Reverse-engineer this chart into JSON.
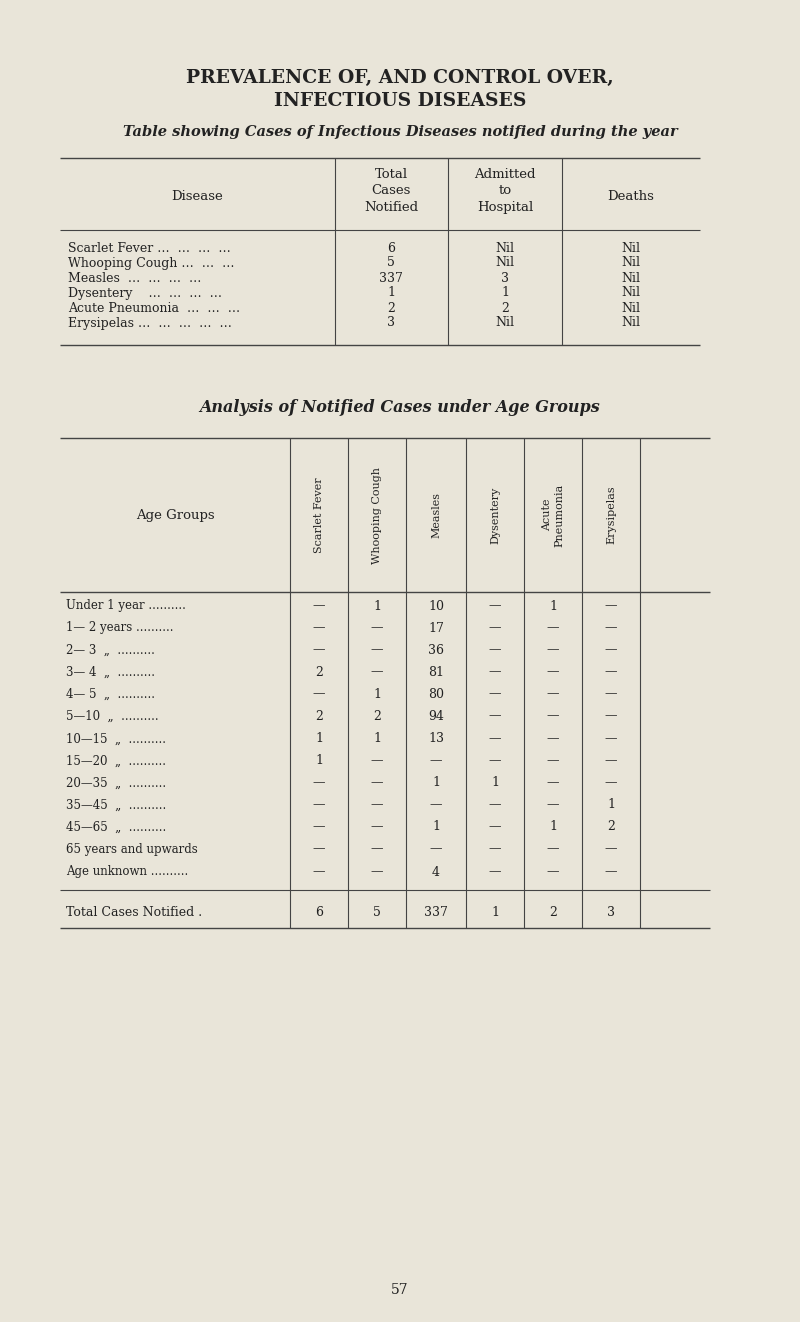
{
  "bg_color": "#e9e5d9",
  "title_line1": "PREVALENCE OF, AND CONTROL OVER,",
  "title_line2": "INFECTIOUS DISEASES",
  "subtitle": "Table showing Cases of Infectious Diseases notified during the year",
  "table1_rows": [
    [
      "Scarlet Fever …  …  …  …",
      "6",
      "Nil",
      "Nil"
    ],
    [
      "Whooping Cough …  …  …",
      "5",
      "Nil",
      "Nil"
    ],
    [
      "Measles  …  …  …  …",
      "337",
      "3",
      "Nil"
    ],
    [
      "Dysentery    …  …  …  …",
      "1",
      "1",
      "Nil"
    ],
    [
      "Acute Pneumonia  …  …  …",
      "2",
      "2",
      "Nil"
    ],
    [
      "Erysipelas …  …  …  …  …",
      "3",
      "Nil",
      "Nil"
    ]
  ],
  "table2_title": "Analysis of Notified Cases under Age Groups",
  "table2_col_headers": [
    "Scarlet Fever",
    "Whooping Cough",
    "Measles",
    "Dysentery",
    "Acute\nPneumonia",
    "Erysipelas"
  ],
  "table2_age_groups": [
    "Under 1 year ..........",
    "1— 2 years ..........",
    "2— 3  „  ..........",
    "3— 4  „  ..........",
    "4— 5  „  ..........",
    "5—10  „  ..........",
    "10—15  „  ..........",
    "15—20  „  ..........",
    "20—35  „  ..........",
    "35—45  „  ..........",
    "45—65  „  ..........",
    "65 years and upwards",
    "Age unknown .........."
  ],
  "table2_data": [
    [
      "—",
      "1",
      "10",
      "—",
      "1",
      "—"
    ],
    [
      "—",
      "—",
      "17",
      "—",
      "—",
      "—"
    ],
    [
      "—",
      "—",
      "36",
      "—",
      "—",
      "—"
    ],
    [
      "2",
      "—",
      "81",
      "—",
      "—",
      "—"
    ],
    [
      "—",
      "1",
      "80",
      "—",
      "—",
      "—"
    ],
    [
      "2",
      "2",
      "94",
      "—",
      "—",
      "—"
    ],
    [
      "1",
      "1",
      "13",
      "—",
      "—",
      "—"
    ],
    [
      "1",
      "—",
      "—",
      "—",
      "—",
      "—"
    ],
    [
      "—",
      "—",
      "1",
      "1",
      "—",
      "—"
    ],
    [
      "—",
      "—",
      "—",
      "—",
      "—",
      "1"
    ],
    [
      "—",
      "—",
      "1",
      "—",
      "1",
      "2"
    ],
    [
      "—",
      "—",
      "—",
      "—",
      "—",
      "—"
    ],
    [
      "—",
      "—",
      "4",
      "—",
      "—",
      "—"
    ]
  ],
  "table2_totals": [
    "6",
    "5",
    "337",
    "1",
    "2",
    "3"
  ],
  "page_number": "57",
  "text_color": "#222222",
  "line_color": "#444444"
}
